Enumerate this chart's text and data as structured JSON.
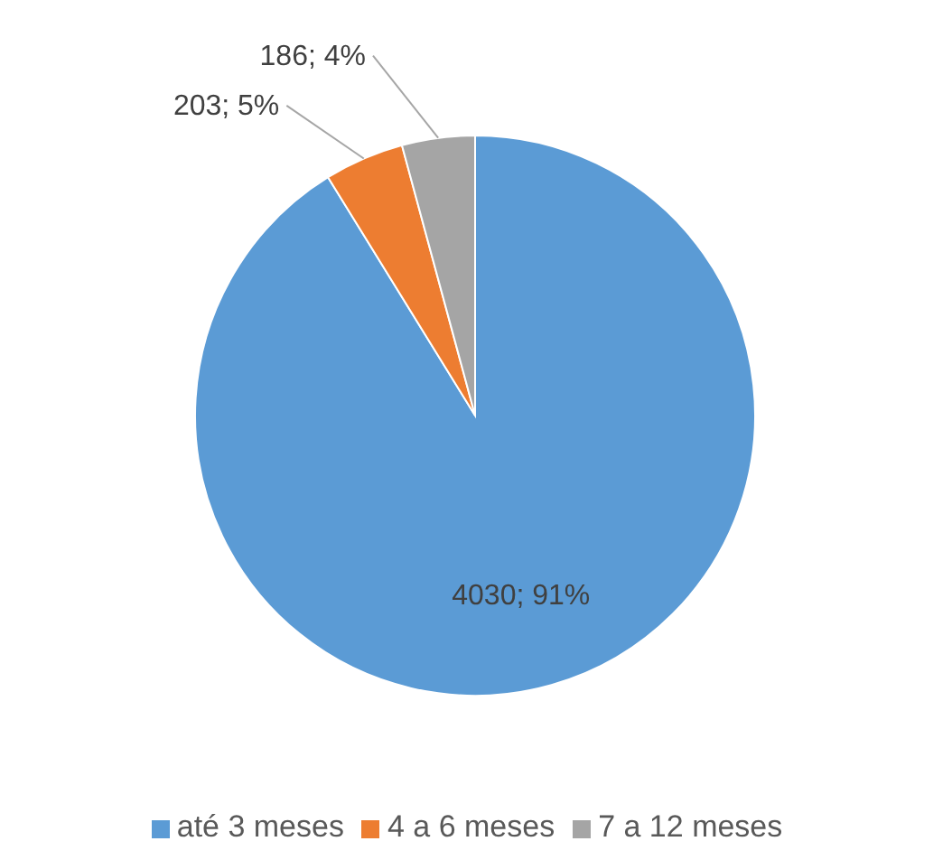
{
  "chart_data": {
    "type": "pie",
    "categories": [
      "até 3 meses",
      "4 a 6 meses",
      "7 a 12 meses"
    ],
    "values": [
      4030,
      203,
      186
    ],
    "colors": [
      "#5b9bd5",
      "#ed7d31",
      "#a5a5a5"
    ],
    "value_labels": [
      "4030; 91%",
      "203; 5%",
      "186; 4%"
    ],
    "legend": "bottom"
  }
}
